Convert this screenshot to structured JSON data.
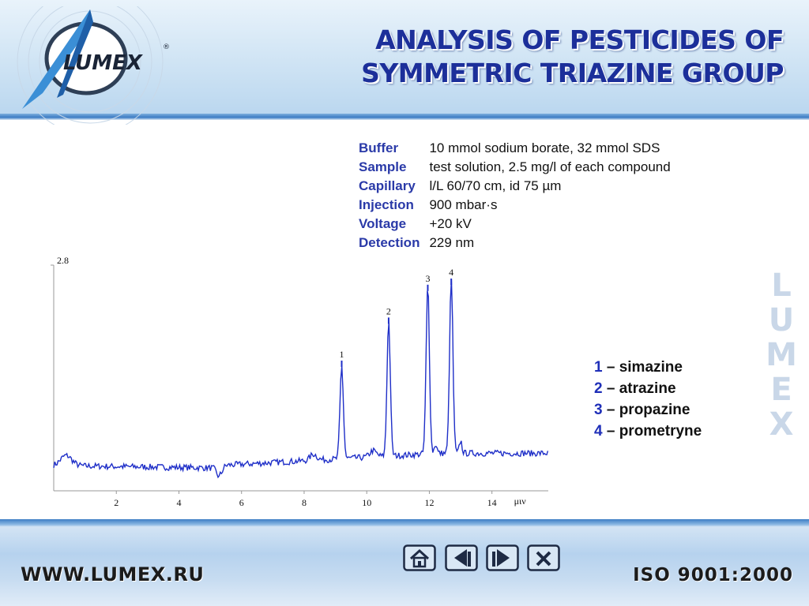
{
  "header": {
    "title_line1": "ANALYSIS OF PESTICIDES OF",
    "title_line2": "SYMMETRIC TRIAZINE GROUP",
    "logo_text": "LUMEX",
    "logo_mark": "®"
  },
  "watermark": {
    "text": "LUMEX"
  },
  "parameters": [
    {
      "label": "Buffer",
      "value": "10 mmol sodium borate, 32 mmol SDS"
    },
    {
      "label": "Sample",
      "value": "test solution, 2.5 mg/l of each compound"
    },
    {
      "label": "Capillary",
      "value": "l/L 60/70 cm, id 75 µm"
    },
    {
      "label": "Injection",
      "value": "900 mbar·s"
    },
    {
      "label": "Voltage",
      "value": "+20 kV"
    },
    {
      "label": "Detection",
      "value": "229 nm"
    }
  ],
  "legend": [
    {
      "num": "1",
      "name": " – simazine"
    },
    {
      "num": "2",
      "name": " – atrazine"
    },
    {
      "num": "3",
      "name": " – propazine"
    },
    {
      "num": "4",
      "name": " – prometryne"
    }
  ],
  "chart_data": {
    "type": "line",
    "y_tick_label": "2.8",
    "x_unit_label": "μιν",
    "x_ticks": [
      2,
      4,
      6,
      8,
      10,
      12,
      14
    ],
    "xlim": [
      0,
      15.8
    ],
    "ylim": [
      0,
      1
    ],
    "color": "#1f2fc8",
    "peaks": [
      {
        "label": "1",
        "time": 9.2,
        "height": 0.45
      },
      {
        "label": "2",
        "time": 10.7,
        "height": 0.66
      },
      {
        "label": "3",
        "time": 11.95,
        "height": 0.82
      },
      {
        "label": "4",
        "time": 12.7,
        "height": 0.85
      }
    ]
  },
  "nav": {
    "home_icon": "home-icon",
    "prev_icon": "arrow-left-icon",
    "next_icon": "arrow-right-icon",
    "close_icon": "close-icon"
  },
  "footer": {
    "url": "WWW.LUMEX.RU",
    "iso": "ISO 9001:2000"
  },
  "colors": {
    "title": "#1c2f9a",
    "label": "#2a3aa8",
    "trace": "#1f2fc8",
    "accent": "#3c7cc4"
  }
}
